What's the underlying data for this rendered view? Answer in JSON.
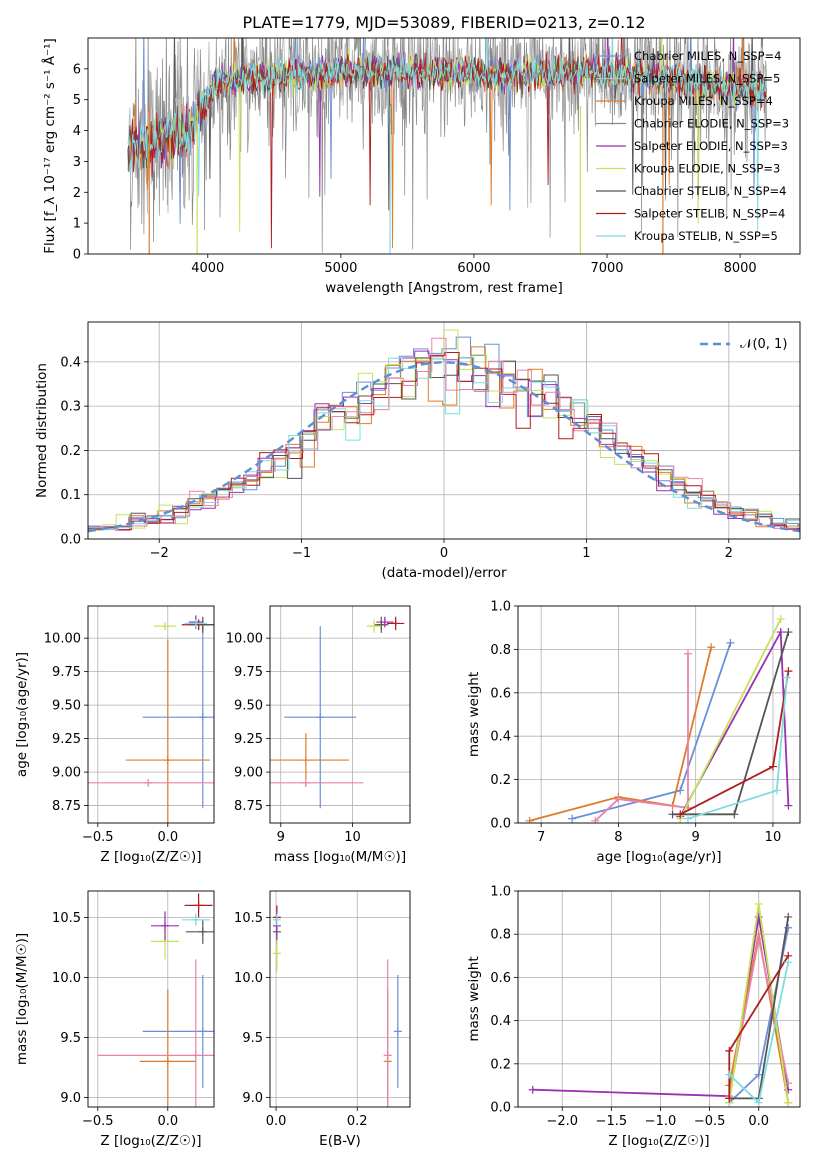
{
  "figure": {
    "title": "PLATE=1779, MJD=53089, FIBERID=0213, z=0.12"
  },
  "chart_data": [
    {
      "id": "spectrum",
      "type": "line",
      "xlabel": "wavelength [Angstrom, rest frame]",
      "ylabel": "Flux [f_λ 10⁻¹⁷ erg cm⁻² s⁻¹ Å⁻¹]",
      "xlim": [
        3100,
        8450
      ],
      "ylim": [
        0,
        7
      ],
      "xticks": [
        4000,
        5000,
        6000,
        7000,
        8000
      ],
      "yticks": [
        0,
        1,
        2,
        3,
        4,
        5,
        6
      ],
      "legend": "top-right",
      "series": [
        {
          "name": "Chabrier MILES, N_SSP=4",
          "color": "#6a8fd8"
        },
        {
          "name": "Salpeter MILES, N_SSP=5",
          "color": "#bdbdbd"
        },
        {
          "name": "Kroupa MILES, N_SSP=4",
          "color": "#e07b28"
        },
        {
          "name": "Chabrier ELODIE, N_SSP=3",
          "color": "#888888"
        },
        {
          "name": "Salpeter ELODIE, N_SSP=3",
          "color": "#9b30b0"
        },
        {
          "name": "Kroupa ELODIE, N_SSP=3",
          "color": "#c5e35a"
        },
        {
          "name": "Chabrier STELIB, N_SSP=4",
          "color": "#555555"
        },
        {
          "name": "Salpeter STELIB, N_SSP=4",
          "color": "#b01c1c"
        },
        {
          "name": "Kroupa STELIB, N_SSP=5",
          "color": "#7fdbe0"
        }
      ],
      "model_curve": {
        "x": [
          3400,
          3550,
          3700,
          3850,
          3950,
          4050,
          4300,
          4600,
          5000,
          5300,
          5600,
          5900,
          6200,
          6500,
          6800,
          7100,
          7300,
          7600,
          7900,
          8200
        ],
        "y": [
          3.4,
          3.6,
          3.7,
          3.9,
          4.6,
          5.5,
          5.7,
          5.8,
          5.9,
          5.95,
          5.9,
          5.85,
          5.8,
          5.85,
          5.9,
          5.8,
          5.75,
          5.6,
          5.4,
          5.3
        ]
      }
    },
    {
      "id": "residual-histogram",
      "type": "bar",
      "xlabel": "(data-model)/error",
      "ylabel": "Normed distribution",
      "xlim": [
        -2.5,
        2.5
      ],
      "ylim": [
        0,
        0.49
      ],
      "xticks": [
        -2,
        -1,
        0,
        1,
        2
      ],
      "yticks": [
        0.0,
        0.1,
        0.2,
        0.3,
        0.4
      ],
      "legend": "top-right",
      "legend_label": "𝒩(0, 1)",
      "gaussian": {
        "mean": 0,
        "sigma": 1,
        "color": "#5b8fd6"
      },
      "bin_width": 0.1,
      "bins_start": -2.5,
      "histogram_colors": [
        "#6a8fd8",
        "#e07b28",
        "#9b30b0",
        "#c5e35a",
        "#555555",
        "#b01c1c",
        "#7fdbe0",
        "#e882ad"
      ]
    },
    {
      "id": "age-vs-Z",
      "type": "scatter",
      "xlabel": "Z [log₁₀(Z/Z☉)]",
      "ylabel": "age  [log₁₀(age/yr)]",
      "xlim": [
        -0.57,
        0.33
      ],
      "ylim": [
        8.62,
        10.24
      ],
      "xticks": [
        -0.5,
        0.0,
        0.5
      ],
      "xticklabels": [
        "−0.5",
        "0.0",
        "0.5"
      ],
      "yticks": [
        8.75,
        9.0,
        9.25,
        9.5,
        9.75,
        10.0
      ],
      "points": [
        {
          "x": 0.25,
          "y": 9.41,
          "xerr": 0.43,
          "yerr": 0.68,
          "color": "#6a8fd8"
        },
        {
          "x": 0.0,
          "y": 9.09,
          "xerr": 0.3,
          "yerr": 0.9,
          "color": "#e07b28"
        },
        {
          "x": -0.14,
          "y": 8.92,
          "xerr": 0.52,
          "yerr": 0.0,
          "color": "#e882ad"
        },
        {
          "x": 0.22,
          "y": 10.1,
          "xerr": 0.12,
          "yerr": 0.04,
          "color": "#b01c1c"
        },
        {
          "x": 0.25,
          "y": 10.1,
          "xerr": 0.1,
          "yerr": 0.06,
          "color": "#555555"
        },
        {
          "x": -0.02,
          "y": 10.09,
          "xerr": 0.08,
          "yerr": 0.03,
          "color": "#c5e35a"
        },
        {
          "x": 0.2,
          "y": 10.12,
          "xerr": 0.05,
          "yerr": 0.05,
          "color": "#9b30b0"
        },
        {
          "x": 0.2,
          "y": 10.11,
          "xerr": 0.08,
          "yerr": 0.03,
          "color": "#7fdbe0"
        }
      ]
    },
    {
      "id": "age-vs-mass",
      "type": "scatter",
      "xlabel": "mass [log₁₀(M/M☉)]",
      "ylabel": "",
      "xlim": [
        8.85,
        10.8
      ],
      "ylim": [
        8.62,
        10.24
      ],
      "xticks": [
        9,
        10
      ],
      "yticks": [
        8.75,
        9.0,
        9.25,
        9.5,
        9.75,
        10.0
      ],
      "points": [
        {
          "x": 9.55,
          "y": 9.41,
          "xerr": 0.5,
          "yerr": 0.68,
          "color": "#6a8fd8"
        },
        {
          "x": 9.35,
          "y": 9.09,
          "xerr": 0.6,
          "yerr": 0.2,
          "color": "#e07b28"
        },
        {
          "x": 9.35,
          "y": 8.92,
          "xerr": 0.8,
          "yerr": 0.0,
          "color": "#e882ad"
        },
        {
          "x": 10.6,
          "y": 10.11,
          "xerr": 0.12,
          "yerr": 0.05,
          "color": "#b01c1c"
        },
        {
          "x": 10.4,
          "y": 10.1,
          "xerr": 0.1,
          "yerr": 0.06,
          "color": "#555555"
        },
        {
          "x": 10.3,
          "y": 10.09,
          "xerr": 0.1,
          "yerr": 0.05,
          "color": "#c5e35a"
        },
        {
          "x": 10.45,
          "y": 10.12,
          "xerr": 0.12,
          "yerr": 0.04,
          "color": "#9b30b0"
        }
      ]
    },
    {
      "id": "massweight-vs-age",
      "type": "line",
      "xlabel": "age  [log₁₀(age/yr)]",
      "ylabel": "mass weight",
      "xlim": [
        6.7,
        10.35
      ],
      "ylim": [
        0.0,
        1.0
      ],
      "xticks": [
        7,
        8,
        9,
        10
      ],
      "yticks": [
        0.0,
        0.2,
        0.4,
        0.6,
        0.8,
        1.0
      ],
      "series": [
        {
          "color": "#6a8fd8",
          "x": [
            7.4,
            8.8,
            9.45
          ],
          "y": [
            0.02,
            0.15,
            0.83
          ]
        },
        {
          "color": "#e07b28",
          "x": [
            6.85,
            8.0,
            8.7,
            9.2
          ],
          "y": [
            0.01,
            0.12,
            0.08,
            0.81
          ]
        },
        {
          "color": "#e882ad",
          "x": [
            7.7,
            8.0,
            8.9,
            8.9
          ],
          "y": [
            0.01,
            0.11,
            0.07,
            0.78
          ]
        },
        {
          "color": "#9b30b0",
          "x": [
            8.8,
            10.1,
            10.2
          ],
          "y": [
            0.03,
            0.88,
            0.08
          ]
        },
        {
          "color": "#c5e35a",
          "x": [
            8.8,
            10.1
          ],
          "y": [
            0.02,
            0.94
          ]
        },
        {
          "color": "#555555",
          "x": [
            8.7,
            9.5,
            10.2
          ],
          "y": [
            0.04,
            0.04,
            0.88
          ]
        },
        {
          "color": "#b01c1c",
          "x": [
            8.8,
            10.0,
            10.2
          ],
          "y": [
            0.04,
            0.26,
            0.7
          ]
        },
        {
          "color": "#7fdbe0",
          "x": [
            8.9,
            10.05,
            10.18
          ],
          "y": [
            0.02,
            0.15,
            0.67
          ]
        }
      ]
    },
    {
      "id": "mass-vs-Z",
      "type": "scatter",
      "xlabel": "Z [log₁₀(Z/Z☉)]",
      "ylabel": "mass [log₁₀(M/M☉)]",
      "xlim": [
        -0.57,
        0.33
      ],
      "ylim": [
        8.92,
        10.72
      ],
      "xticks": [
        -0.5,
        0.0,
        0.5
      ],
      "xticklabels": [
        "−0.5",
        "0.0",
        "0.5"
      ],
      "yticks": [
        9.0,
        9.5,
        10.0,
        10.5
      ],
      "points": [
        {
          "x": 0.25,
          "y": 9.55,
          "xerr": 0.43,
          "yerr": 0.47,
          "color": "#6a8fd8"
        },
        {
          "x": 0.0,
          "y": 9.3,
          "xerr": 0.2,
          "yerr": 0.6,
          "color": "#e07b28"
        },
        {
          "x": 0.2,
          "y": 9.35,
          "xerr": 0.7,
          "yerr": 0.8,
          "color": "#e882ad"
        },
        {
          "x": 0.22,
          "y": 10.6,
          "xerr": 0.1,
          "yerr": 0.1,
          "color": "#b01c1c"
        },
        {
          "x": 0.25,
          "y": 10.38,
          "xerr": 0.12,
          "yerr": 0.1,
          "color": "#555555"
        },
        {
          "x": -0.02,
          "y": 10.3,
          "xerr": 0.1,
          "yerr": 0.15,
          "color": "#c5e35a"
        },
        {
          "x": -0.02,
          "y": 10.43,
          "xerr": 0.1,
          "yerr": 0.12,
          "color": "#9b30b0"
        },
        {
          "x": 0.2,
          "y": 10.48,
          "xerr": 0.1,
          "yerr": 0.05,
          "color": "#7fdbe0"
        }
      ]
    },
    {
      "id": "mass-vs-EBV",
      "type": "scatter",
      "xlabel": "E(B-V)",
      "ylabel": "",
      "xlim": [
        -0.015,
        0.33
      ],
      "ylim": [
        8.92,
        10.72
      ],
      "xticks": [
        0.0,
        0.2
      ],
      "xticklabels": [
        "0.0",
        "0.2"
      ],
      "yticks": [
        9.0,
        9.5,
        10.0,
        10.5
      ],
      "points": [
        {
          "x": 0.3,
          "y": 9.55,
          "xerr": 0.0,
          "yerr": 0.47,
          "color": "#6a8fd8"
        },
        {
          "x": 0.275,
          "y": 9.3,
          "xerr": 0.0,
          "yerr": 0.6,
          "color": "#e07b28"
        },
        {
          "x": 0.275,
          "y": 9.35,
          "xerr": 0.0,
          "yerr": 0.8,
          "color": "#e882ad"
        },
        {
          "x": 0.002,
          "y": 10.5,
          "xerr": 0.0,
          "yerr": 0.1,
          "color": "#b01c1c"
        },
        {
          "x": 0.002,
          "y": 10.38,
          "xerr": 0.0,
          "yerr": 0.1,
          "color": "#555555"
        },
        {
          "x": 0.002,
          "y": 10.2,
          "xerr": 0.0,
          "yerr": 0.15,
          "color": "#c5e35a"
        },
        {
          "x": 0.002,
          "y": 10.43,
          "xerr": 0.0,
          "yerr": 0.12,
          "color": "#9b30b0"
        },
        {
          "x": 0.002,
          "y": 10.48,
          "xerr": 0.0,
          "yerr": 0.05,
          "color": "#7fdbe0"
        }
      ]
    },
    {
      "id": "massweight-vs-Z",
      "type": "line",
      "xlabel": "Z [log₁₀(Z/Z☉)]",
      "ylabel": "mass weight",
      "xlim": [
        -2.45,
        0.42
      ],
      "ylim": [
        0.0,
        1.0
      ],
      "xticks": [
        -2.0,
        -1.5,
        -1.0,
        -0.5,
        0.0
      ],
      "xticklabels": [
        "−2.0",
        "−1.5",
        "−1.0",
        "−0.5",
        "0.0"
      ],
      "yticks": [
        0.0,
        0.2,
        0.4,
        0.6,
        0.8,
        1.0
      ],
      "series": [
        {
          "color": "#9b30b0",
          "x": [
            -2.3,
            -0.3,
            0.0,
            0.3
          ],
          "y": [
            0.08,
            0.05,
            0.88,
            0.08
          ]
        },
        {
          "color": "#6a8fd8",
          "x": [
            -0.3,
            0.0,
            0.3
          ],
          "y": [
            0.02,
            0.15,
            0.83
          ]
        },
        {
          "color": "#e07b28",
          "x": [
            -0.3,
            0.0,
            0.3
          ],
          "y": [
            0.1,
            0.8,
            0.02
          ]
        },
        {
          "color": "#e882ad",
          "x": [
            -0.3,
            0.0,
            0.3
          ],
          "y": [
            0.05,
            0.78,
            0.11
          ]
        },
        {
          "color": "#c5e35a",
          "x": [
            -0.3,
            0.0,
            0.3
          ],
          "y": [
            0.02,
            0.94,
            0.02
          ]
        },
        {
          "color": "#555555",
          "x": [
            -0.3,
            0.0,
            0.3
          ],
          "y": [
            0.04,
            0.04,
            0.88
          ]
        },
        {
          "color": "#b01c1c",
          "x": [
            -0.3,
            -0.3,
            0.3
          ],
          "y": [
            0.04,
            0.26,
            0.7
          ]
        },
        {
          "color": "#7fdbe0",
          "x": [
            -0.3,
            0.0,
            0.3
          ],
          "y": [
            0.15,
            0.02,
            0.67
          ]
        }
      ]
    }
  ]
}
